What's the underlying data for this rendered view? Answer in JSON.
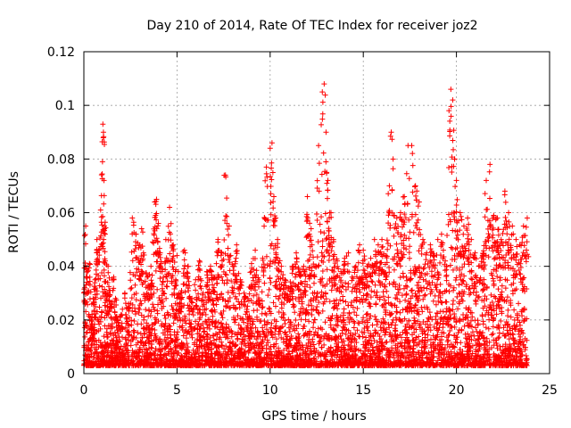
{
  "chart_data": {
    "type": "scatter",
    "title": "Day 210 of 2014, Rate Of TEC Index for receiver joz2",
    "xlabel": "GPS time / hours",
    "ylabel": "ROTI / TECUs",
    "xlim": [
      0,
      25
    ],
    "ylim": [
      0,
      0.12
    ],
    "xticks": [
      0,
      5,
      10,
      15,
      20,
      25
    ],
    "yticks": [
      0,
      0.02,
      0.04,
      0.06,
      0.08,
      0.1,
      0.12
    ],
    "xtick_labels": [
      "0",
      "5",
      "10",
      "15",
      "20",
      "25"
    ],
    "ytick_labels": [
      "0",
      "0.02",
      "0.04",
      "0.06",
      "0.08",
      "0.1",
      "0.12"
    ],
    "grid": true,
    "marker": "+",
    "color": "#ff0000",
    "series": [
      {
        "name": "ROTI",
        "description_points": "dense cloud of samples between ~0.003 and ~0.06 TECU/s across 0-23.8 h, with spikes",
        "x": [
          0.05,
          0.1,
          0.2,
          0.3,
          0.4,
          0.5,
          0.6,
          0.7,
          0.8,
          0.9,
          1.0,
          1.02,
          1.05,
          1.08,
          1.1,
          1.15,
          1.2,
          1.3,
          1.4,
          1.5,
          1.6,
          1.7,
          1.8,
          2.0,
          2.2,
          2.4,
          2.6,
          2.8,
          3.0,
          3.1,
          3.2,
          3.4,
          3.6,
          3.8,
          3.9,
          4.0,
          4.1,
          4.2,
          4.4,
          4.6,
          4.8,
          5.0,
          5.2,
          5.4,
          5.6,
          5.8,
          6.0,
          6.2,
          6.4,
          6.6,
          6.8,
          7.0,
          7.2,
          7.4,
          7.6,
          7.8,
          8.0,
          8.2,
          8.4,
          8.6,
          8.8,
          9.0,
          9.2,
          9.4,
          9.6,
          9.8,
          10.0,
          10.1,
          10.2,
          10.3,
          10.4,
          10.6,
          10.8,
          11.0,
          11.2,
          11.4,
          11.6,
          11.8,
          12.0,
          12.2,
          12.4,
          12.6,
          12.8,
          12.9,
          13.0,
          13.1,
          13.2,
          13.4,
          13.6,
          13.8,
          14.0,
          14.2,
          14.4,
          14.6,
          14.8,
          15.0,
          15.2,
          15.4,
          15.6,
          15.8,
          16.0,
          16.2,
          16.4,
          16.5,
          16.6,
          16.8,
          17.0,
          17.2,
          17.4,
          17.6,
          17.8,
          18.0,
          18.2,
          18.4,
          18.6,
          18.8,
          19.0,
          19.2,
          19.4,
          19.6,
          19.7,
          19.8,
          19.9,
          20.0,
          20.2,
          20.4,
          20.6,
          20.8,
          21.0,
          21.2,
          21.4,
          21.6,
          21.8,
          22.0,
          22.2,
          22.4,
          22.6,
          22.8,
          23.0,
          23.2,
          23.4,
          23.6,
          23.8
        ],
        "y": [
          0.032,
          0.055,
          0.038,
          0.041,
          0.02,
          0.028,
          0.035,
          0.05,
          0.046,
          0.061,
          0.079,
          0.093,
          0.09,
          0.072,
          0.055,
          0.042,
          0.03,
          0.04,
          0.031,
          0.025,
          0.036,
          0.028,
          0.02,
          0.022,
          0.03,
          0.026,
          0.058,
          0.052,
          0.048,
          0.054,
          0.045,
          0.036,
          0.04,
          0.064,
          0.065,
          0.056,
          0.045,
          0.038,
          0.05,
          0.062,
          0.048,
          0.044,
          0.03,
          0.046,
          0.04,
          0.028,
          0.035,
          0.042,
          0.03,
          0.038,
          0.04,
          0.036,
          0.05,
          0.045,
          0.074,
          0.055,
          0.04,
          0.048,
          0.035,
          0.03,
          0.028,
          0.041,
          0.046,
          0.035,
          0.043,
          0.077,
          0.084,
          0.086,
          0.066,
          0.058,
          0.05,
          0.04,
          0.035,
          0.032,
          0.04,
          0.045,
          0.038,
          0.04,
          0.066,
          0.054,
          0.04,
          0.085,
          0.105,
          0.108,
          0.09,
          0.072,
          0.06,
          0.05,
          0.042,
          0.038,
          0.043,
          0.045,
          0.036,
          0.04,
          0.048,
          0.046,
          0.04,
          0.043,
          0.05,
          0.048,
          0.05,
          0.044,
          0.07,
          0.09,
          0.08,
          0.058,
          0.06,
          0.066,
          0.085,
          0.085,
          0.07,
          0.064,
          0.05,
          0.045,
          0.048,
          0.044,
          0.05,
          0.052,
          0.042,
          0.098,
          0.106,
          0.102,
          0.08,
          0.072,
          0.06,
          0.055,
          0.058,
          0.05,
          0.045,
          0.04,
          0.044,
          0.072,
          0.078,
          0.059,
          0.058,
          0.05,
          0.068,
          0.06,
          0.055,
          0.05,
          0.048,
          0.055,
          0.058
        ]
      }
    ]
  }
}
